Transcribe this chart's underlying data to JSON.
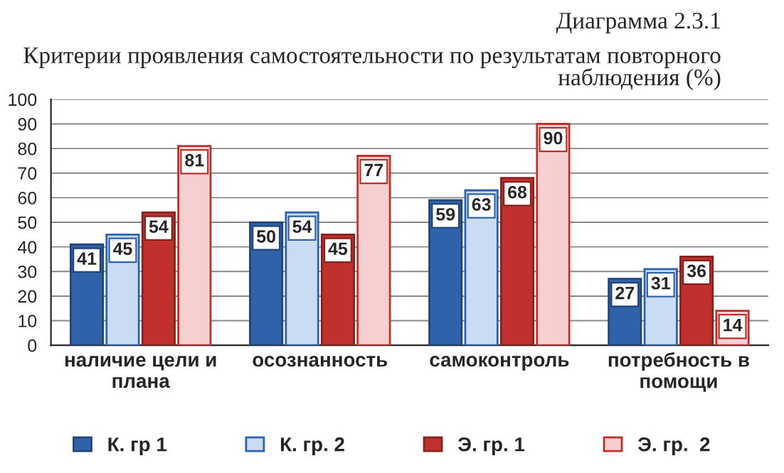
{
  "chart_data": {
    "type": "bar",
    "title": "Диаграмма 2.3.1",
    "subtitle": "Критерии проявления самостоятельности по результатам повторного наблюдения (%)",
    "categories": [
      "наличие цели и плана",
      "осознанность",
      "самоконтроль",
      "потребность в помощи"
    ],
    "series": [
      {
        "name": "К. гр 1",
        "color": "#2f62a8",
        "values": [
          41,
          50,
          59,
          27
        ]
      },
      {
        "name": "К. гр. 2",
        "color": "#c9dcf3",
        "values": [
          45,
          54,
          63,
          31
        ]
      },
      {
        "name": "Э. гр. 1",
        "color": "#c0302c",
        "values": [
          54,
          45,
          68,
          36
        ]
      },
      {
        "name": "Э. гр.  2",
        "color": "#f6d0d0",
        "values": [
          81,
          77,
          90,
          14
        ]
      }
    ],
    "ylim": [
      0,
      100
    ],
    "yticks": [
      0,
      10,
      20,
      30,
      40,
      50,
      60,
      70,
      80,
      90,
      100
    ],
    "grid": "y",
    "legend": "bottom",
    "data_labels": true
  }
}
